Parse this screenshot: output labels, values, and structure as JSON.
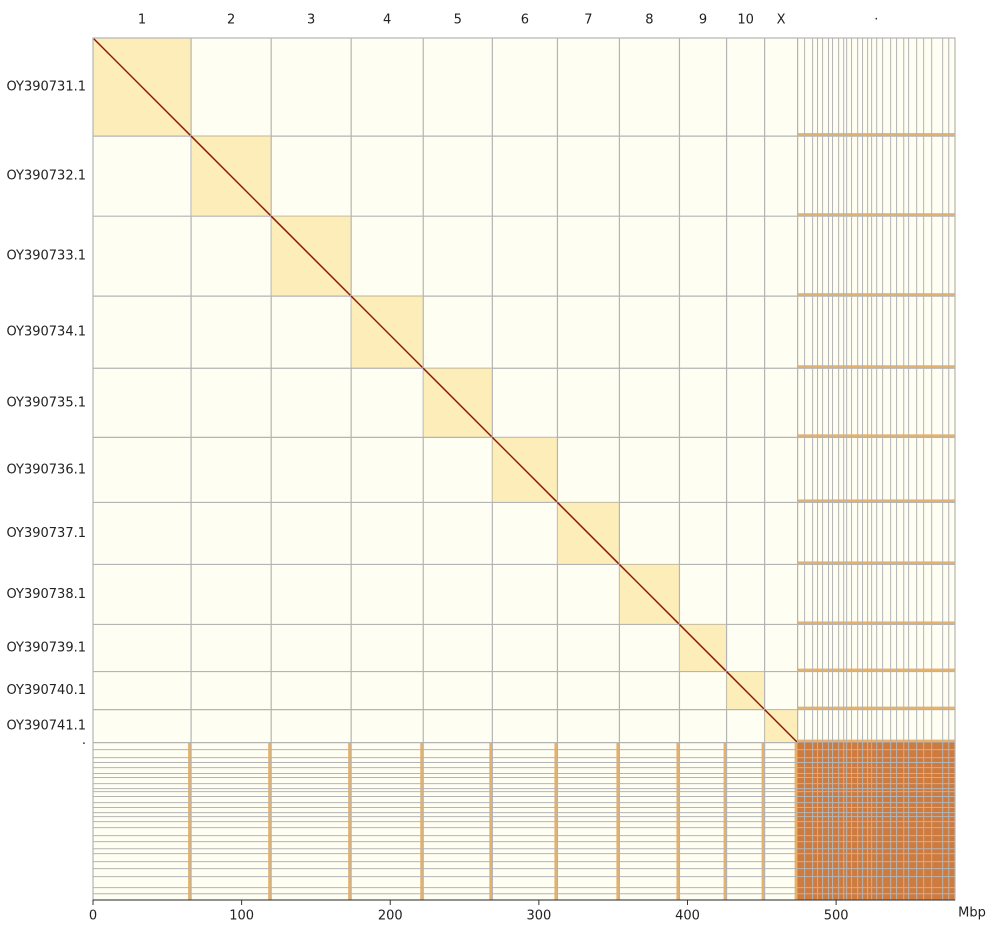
{
  "chart_data": {
    "type": "contact-map",
    "x_label": "Mbp",
    "xlim": [
      0,
      580
    ],
    "xticks": [
      0,
      100,
      200,
      300,
      400,
      500
    ],
    "colors": {
      "background": "#fffef2",
      "domain": "#fbe08a",
      "diagonal": "#8b1a0a",
      "unplaced": "#c8641e",
      "stripe": "#e0902a",
      "grid": "#b4b4b4"
    },
    "sequences": [
      {
        "chromosome": "1",
        "name": "OY390731.1",
        "start": 0,
        "end": 66
      },
      {
        "chromosome": "2",
        "name": "OY390732.1",
        "start": 66,
        "end": 119.9
      },
      {
        "chromosome": "3",
        "name": "OY390733.1",
        "start": 119.9,
        "end": 173.7
      },
      {
        "chromosome": "4",
        "name": "OY390734.1",
        "start": 173.7,
        "end": 222.2
      },
      {
        "chromosome": "5",
        "name": "OY390735.1",
        "start": 222.2,
        "end": 268.7
      },
      {
        "chromosome": "6",
        "name": "OY390736.1",
        "start": 268.7,
        "end": 312.5
      },
      {
        "chromosome": "7",
        "name": "OY390737.1",
        "start": 312.5,
        "end": 354.2
      },
      {
        "chromosome": "8",
        "name": "OY390738.1",
        "start": 354.2,
        "end": 394.6
      },
      {
        "chromosome": "9",
        "name": "OY390739.1",
        "start": 394.6,
        "end": 426.3
      },
      {
        "chromosome": "10",
        "name": "OY390740.1",
        "start": 426.3,
        "end": 451.9
      },
      {
        "chromosome": "X",
        "name": "OY390741.1",
        "start": 451.9,
        "end": 474.1
      },
      {
        "chromosome": "·",
        "name": "·",
        "start": 474.1,
        "end": 580
      }
    ],
    "unplaced_boundaries": [
      478.8,
      484.2,
      487.5,
      490.9,
      494.9,
      497.6,
      501.7,
      505.1,
      507.1,
      510.4,
      514.5,
      517.8,
      521.2,
      523.9,
      527.3,
      531.3,
      536.7,
      540.7,
      545.5,
      548.8,
      554.2,
      558.9,
      564.3,
      571.7,
      575.8
    ]
  }
}
